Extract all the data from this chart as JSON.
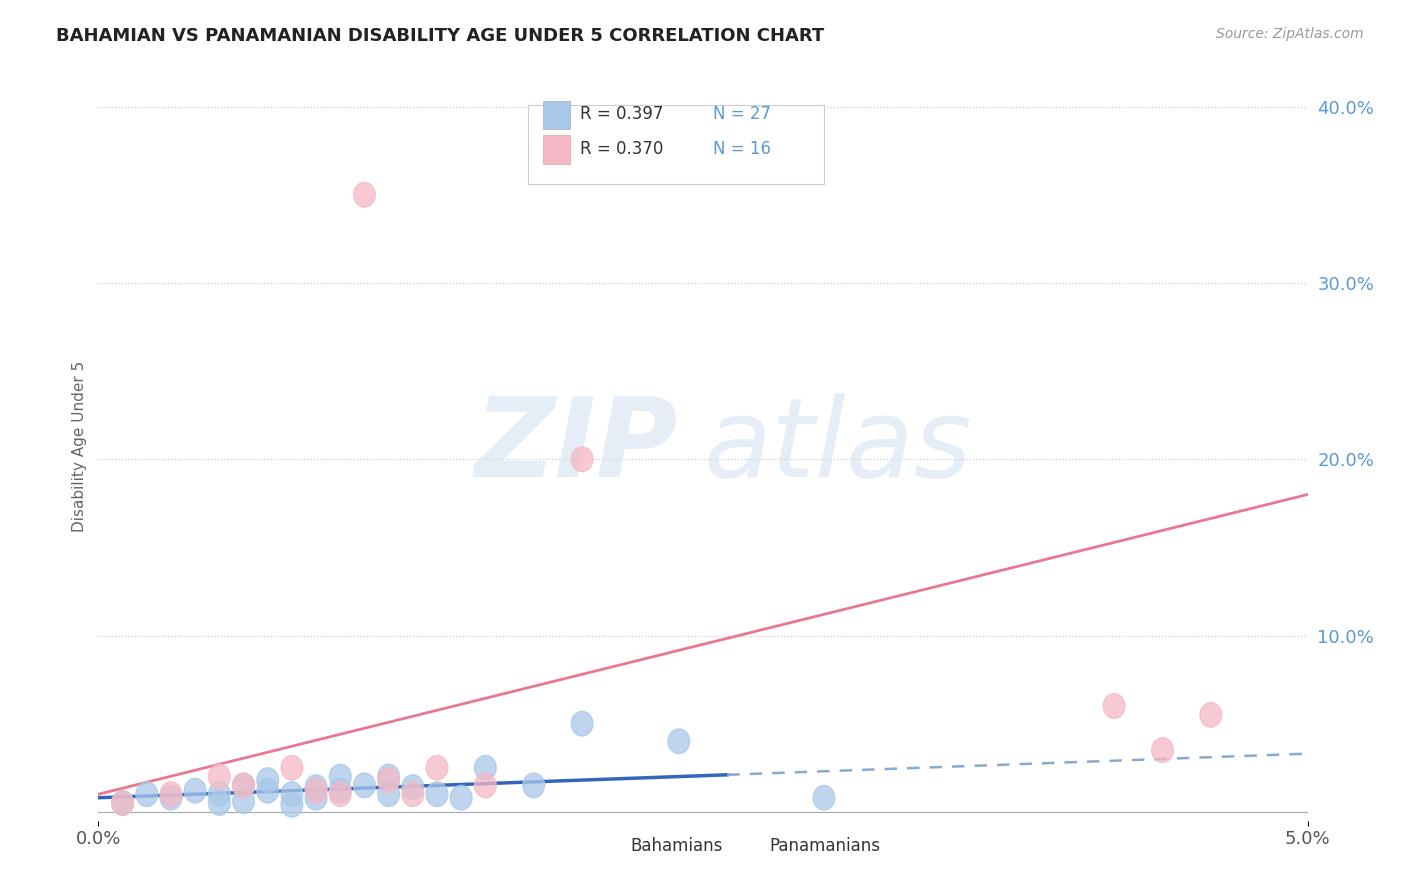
{
  "title": "BAHAMIAN VS PANAMANIAN DISABILITY AGE UNDER 5 CORRELATION CHART",
  "source": "Source: ZipAtlas.com",
  "ylabel": "Disability Age Under 5",
  "xlim": [
    0.0,
    0.05
  ],
  "ylim": [
    -0.005,
    0.42
  ],
  "yticks": [
    0.0,
    0.1,
    0.2,
    0.3,
    0.4
  ],
  "ytick_labels": [
    "",
    "10.0%",
    "20.0%",
    "30.0%",
    "40.0%"
  ],
  "xtick_labels": [
    "0.0%",
    "5.0%"
  ],
  "legend_r1": "R = 0.397",
  "legend_n1": "N = 27",
  "legend_r2": "R = 0.370",
  "legend_n2": "N = 16",
  "bahamian_color": "#a8c8e8",
  "panamanian_color": "#f5b8c4",
  "bahamian_line_color": "#3366bb",
  "bahamian_dash_color": "#88aacc",
  "panamanian_line_color": "#e87890",
  "watermark_zip_color": "#c8d8ec",
  "watermark_atlas_color": "#c8d8ec",
  "background_color": "#ffffff",
  "grid_color": "#cccccc",
  "bah_x": [
    0.001,
    0.002,
    0.003,
    0.004,
    0.005,
    0.005,
    0.006,
    0.006,
    0.007,
    0.007,
    0.008,
    0.008,
    0.009,
    0.009,
    0.01,
    0.01,
    0.011,
    0.012,
    0.012,
    0.013,
    0.014,
    0.015,
    0.016,
    0.018,
    0.02,
    0.024,
    0.03
  ],
  "bah_y": [
    0.005,
    0.01,
    0.008,
    0.012,
    0.01,
    0.005,
    0.015,
    0.006,
    0.012,
    0.018,
    0.01,
    0.004,
    0.008,
    0.014,
    0.012,
    0.02,
    0.015,
    0.01,
    0.02,
    0.014,
    0.01,
    0.008,
    0.025,
    0.015,
    0.05,
    0.04,
    0.008
  ],
  "pan_x": [
    0.001,
    0.003,
    0.005,
    0.006,
    0.008,
    0.009,
    0.01,
    0.011,
    0.012,
    0.013,
    0.014,
    0.016,
    0.02,
    0.042,
    0.044,
    0.046
  ],
  "pan_y": [
    0.005,
    0.01,
    0.02,
    0.015,
    0.025,
    0.012,
    0.01,
    0.35,
    0.018,
    0.01,
    0.025,
    0.015,
    0.2,
    0.06,
    0.035,
    0.055
  ],
  "bah_line_x0": 0.0,
  "bah_line_x_solid_end": 0.026,
  "bah_line_x1": 0.05,
  "pan_line_x0": 0.0,
  "pan_line_x1": 0.05
}
